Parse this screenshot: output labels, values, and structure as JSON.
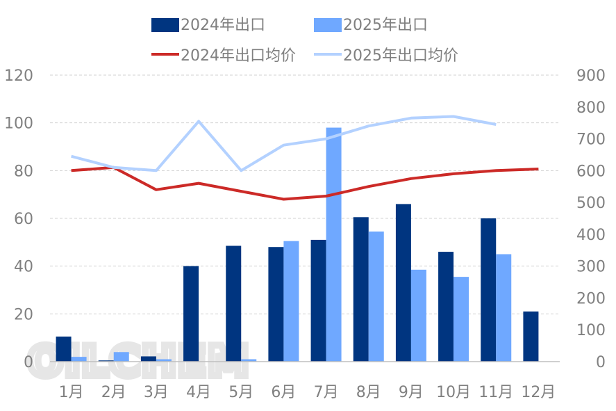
{
  "chart_data": {
    "type": "bar",
    "categories": [
      "1月",
      "2月",
      "3月",
      "4月",
      "5月",
      "6月",
      "7月",
      "8月",
      "9月",
      "10月",
      "11月",
      "12月"
    ],
    "series": [
      {
        "name": "2024年出口",
        "kind": "bar",
        "axis": "left",
        "color": "#003580",
        "values": [
          10.5,
          0.5,
          2.2,
          40,
          48.5,
          48,
          51,
          60.5,
          66,
          46,
          60,
          21
        ]
      },
      {
        "name": "2025年出口",
        "kind": "bar",
        "axis": "left",
        "color": "#6fa8ff",
        "values": [
          2,
          4,
          1,
          0,
          1,
          50.5,
          98,
          54.5,
          38.5,
          35.5,
          45,
          null
        ]
      },
      {
        "name": "2024年出口均价",
        "kind": "line",
        "axis": "right",
        "color": "#cc2a27",
        "values": [
          600,
          610,
          540,
          560,
          535,
          510,
          520,
          550,
          575,
          590,
          600,
          605
        ]
      },
      {
        "name": "2025年出口均价",
        "kind": "line",
        "axis": "right",
        "color": "#b3d1ff",
        "values": [
          645,
          610,
          600,
          755,
          600,
          680,
          700,
          740,
          765,
          770,
          745,
          null
        ]
      }
    ],
    "y_left": {
      "ylim": [
        0,
        120
      ],
      "ticks": [
        "0",
        "20",
        "40",
        "60",
        "80",
        "100",
        "120"
      ]
    },
    "y_right": {
      "ylim": [
        0,
        900
      ],
      "ticks": [
        "0",
        "100",
        "200",
        "300",
        "400",
        "500",
        "600",
        "700",
        "800",
        "900"
      ]
    },
    "grid": true,
    "legend_position": "top",
    "watermark": "OILCHEM"
  }
}
